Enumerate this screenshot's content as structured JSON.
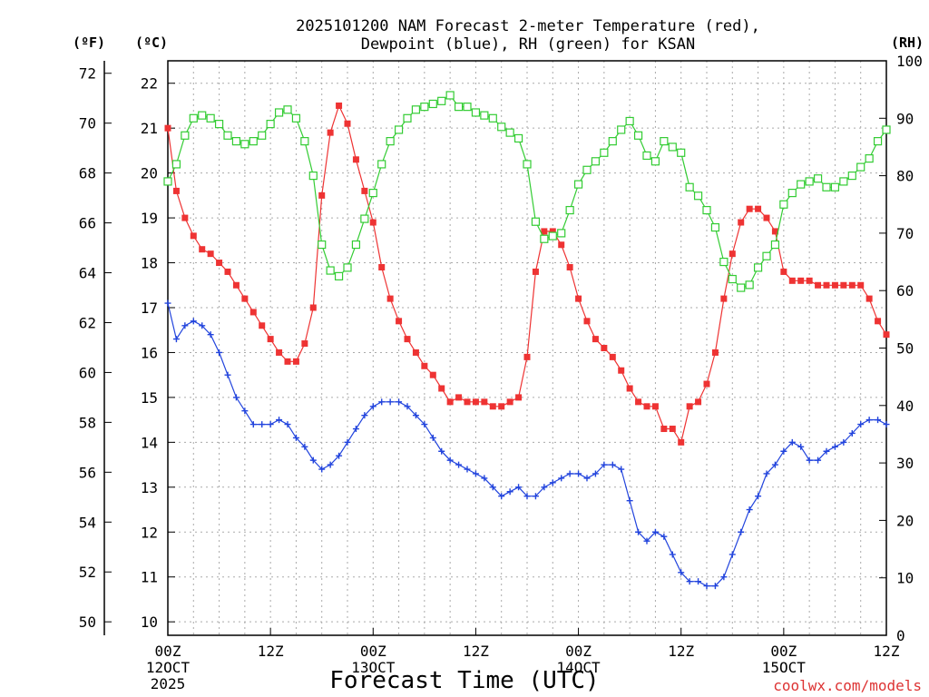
{
  "chart_data": {
    "type": "line",
    "title_line1": "2025101200 NAM Forecast 2-meter Temperature (red),",
    "title_line2": "Dewpoint (blue), RH (green) for KSAN",
    "xlabel": "Forecast Time (UTC)",
    "credit": "coolwx.com/models",
    "units": {
      "f": "(ºF)",
      "c": "(ºC)",
      "rh": "(RH)"
    },
    "x_hours_range": [
      0,
      84
    ],
    "c_range": [
      9.7,
      22.5
    ],
    "rh_range": [
      0,
      100
    ],
    "f_ticks": [
      50,
      52,
      54,
      56,
      58,
      60,
      62,
      64,
      66,
      68,
      70,
      72
    ],
    "c_ticks": [
      10,
      11,
      12,
      13,
      14,
      15,
      16,
      17,
      18,
      19,
      20,
      21,
      22
    ],
    "rh_ticks": [
      0,
      10,
      20,
      30,
      40,
      50,
      60,
      70,
      80,
      90,
      100
    ],
    "x_ticks": [
      {
        "hour": 0,
        "l1": "00Z",
        "l2": "12OCT",
        "l3": "2025"
      },
      {
        "hour": 12,
        "l1": "12Z",
        "l2": "",
        "l3": ""
      },
      {
        "hour": 24,
        "l1": "00Z",
        "l2": "13OCT",
        "l3": ""
      },
      {
        "hour": 36,
        "l1": "12Z",
        "l2": "",
        "l3": ""
      },
      {
        "hour": 48,
        "l1": "00Z",
        "l2": "14OCT",
        "l3": ""
      },
      {
        "hour": 60,
        "l1": "12Z",
        "l2": "",
        "l3": ""
      },
      {
        "hour": 72,
        "l1": "00Z",
        "l2": "15OCT",
        "l3": ""
      },
      {
        "hour": 84,
        "l1": "12Z",
        "l2": "",
        "l3": ""
      }
    ],
    "series": [
      {
        "name": "2-meter Temperature (°C)",
        "axis": "c",
        "color": "#ee3333",
        "marker": "filled-square",
        "values": [
          21.0,
          19.6,
          19.0,
          18.6,
          18.3,
          18.2,
          18.0,
          17.8,
          17.5,
          17.2,
          16.9,
          16.6,
          16.3,
          16.0,
          15.8,
          15.8,
          16.2,
          17.0,
          19.5,
          20.9,
          21.5,
          21.1,
          20.3,
          19.6,
          18.9,
          17.9,
          17.2,
          16.7,
          16.3,
          16.0,
          15.7,
          15.5,
          15.2,
          14.9,
          15.0,
          14.9,
          14.9,
          14.9,
          14.8,
          14.8,
          14.9,
          15.0,
          15.9,
          17.8,
          18.7,
          18.7,
          18.4,
          17.9,
          17.2,
          16.7,
          16.3,
          16.1,
          15.9,
          15.6,
          15.2,
          14.9,
          14.8,
          14.8,
          14.3,
          14.3,
          14.0,
          14.8,
          14.9,
          15.3,
          16.0,
          17.2,
          18.2,
          18.9,
          19.2,
          19.2,
          19.0,
          18.7,
          17.8,
          17.6,
          17.6,
          17.6,
          17.5,
          17.5,
          17.5,
          17.5,
          17.5,
          17.5,
          17.2,
          16.7,
          16.4
        ]
      },
      {
        "name": "Dewpoint (°C)",
        "axis": "c",
        "color": "#2244dd",
        "marker": "plus",
        "values": [
          17.1,
          16.3,
          16.6,
          16.7,
          16.6,
          16.4,
          16.0,
          15.5,
          15.0,
          14.7,
          14.4,
          14.4,
          14.4,
          14.5,
          14.4,
          14.1,
          13.9,
          13.6,
          13.4,
          13.5,
          13.7,
          14.0,
          14.3,
          14.6,
          14.8,
          14.9,
          14.9,
          14.9,
          14.8,
          14.6,
          14.4,
          14.1,
          13.8,
          13.6,
          13.5,
          13.4,
          13.3,
          13.2,
          13.0,
          12.8,
          12.9,
          13.0,
          12.8,
          12.8,
          13.0,
          13.1,
          13.2,
          13.3,
          13.3,
          13.2,
          13.3,
          13.5,
          13.5,
          13.4,
          12.7,
          12.0,
          11.8,
          12.0,
          11.9,
          11.5,
          11.1,
          10.9,
          10.9,
          10.8,
          10.8,
          11.0,
          11.5,
          12.0,
          12.5,
          12.8,
          13.3,
          13.5,
          13.8,
          14.0,
          13.9,
          13.6,
          13.6,
          13.8,
          13.9,
          14.0,
          14.2,
          14.4,
          14.5,
          14.5,
          14.4
        ]
      },
      {
        "name": "RH (%)",
        "axis": "rh",
        "color": "#33cc33",
        "marker": "open-square",
        "values": [
          79,
          82,
          87,
          90,
          90.5,
          90,
          89,
          87,
          86,
          85.5,
          86,
          87,
          89,
          91,
          91.5,
          90,
          86,
          80,
          68,
          63.5,
          62.5,
          64,
          68,
          72.5,
          77,
          82,
          86,
          88,
          90,
          91.5,
          92,
          92.5,
          93,
          94,
          92,
          92,
          91,
          90.5,
          90,
          88.5,
          87.5,
          86.5,
          82,
          72,
          69,
          69.5,
          70,
          74,
          78.5,
          81,
          82.5,
          84,
          86,
          88,
          89.5,
          87,
          83.5,
          82.5,
          86,
          85,
          84,
          78,
          76.5,
          74,
          71,
          65,
          62,
          60.5,
          61,
          64,
          66,
          68,
          75,
          77,
          78.5,
          79,
          79.5,
          78,
          78,
          79,
          80,
          81.5,
          83,
          86,
          88
        ]
      }
    ]
  }
}
